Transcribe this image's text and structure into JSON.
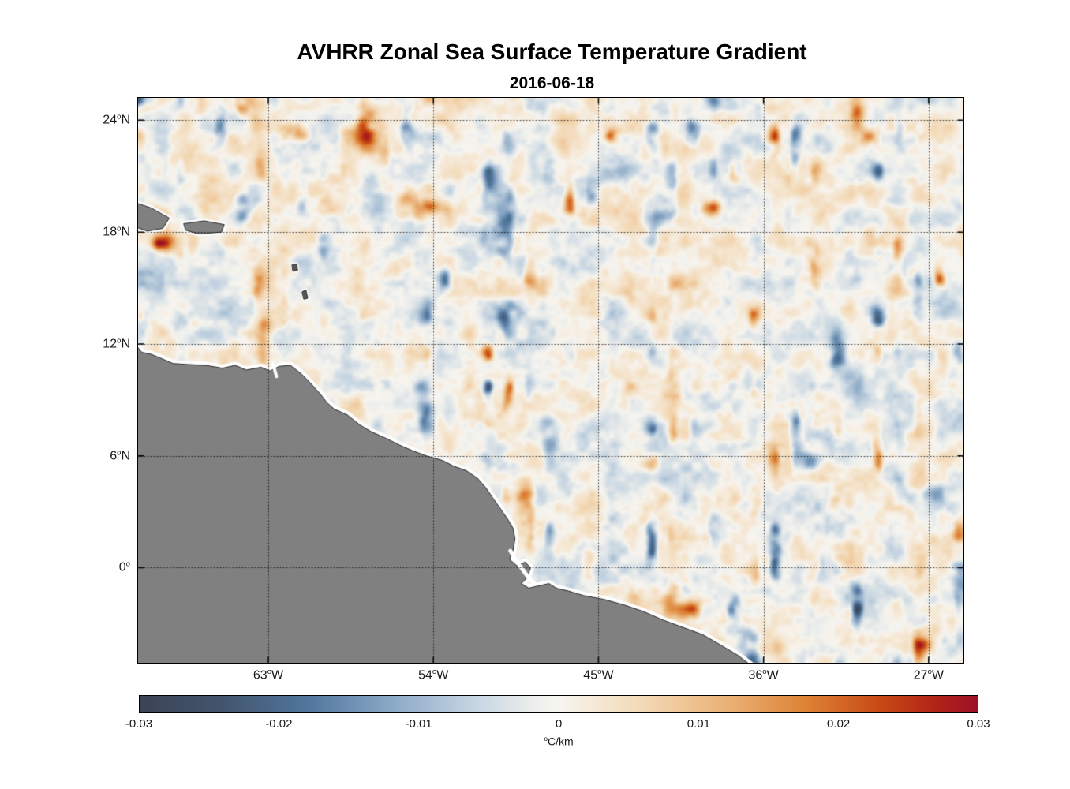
{
  "chart_data": {
    "type": "heatmap",
    "title": "AVHRR Zonal Sea Surface Temperature Gradient",
    "subtitle": "2016-06-18",
    "x_axis": {
      "range": [
        -70.1,
        -25.1
      ],
      "ticks": [
        {
          "value": -63,
          "label": "63°W"
        },
        {
          "value": -54,
          "label": "54°W"
        },
        {
          "value": -45,
          "label": "45°W"
        },
        {
          "value": -36,
          "label": "36°W"
        },
        {
          "value": -27,
          "label": "27°W"
        }
      ]
    },
    "y_axis": {
      "range": [
        -5.1,
        25.2
      ],
      "ticks": [
        {
          "value": 24,
          "label": "24°N"
        },
        {
          "value": 18,
          "label": "18°N"
        },
        {
          "value": 12,
          "label": "12°N"
        },
        {
          "value": 6,
          "label": "6°N"
        },
        {
          "value": 0,
          "label": "0°"
        }
      ]
    },
    "grid": {
      "style": "dotted",
      "color": "rgba(0,0,0,0.75)"
    },
    "value_range": [
      -0.03,
      0.03
    ],
    "colorbar": {
      "orientation": "horizontal",
      "ticks": [
        -0.03,
        -0.02,
        -0.01,
        0,
        0.01,
        0.02,
        0.03
      ],
      "tick_labels": [
        "-0.03",
        "-0.02",
        "-0.01",
        "0",
        "0.01",
        "0.02",
        "0.03"
      ],
      "label": "°C/km",
      "colormap": [
        {
          "t": 0.0,
          "color": "#3b4354"
        },
        {
          "t": 0.1,
          "color": "#42556e"
        },
        {
          "t": 0.2,
          "color": "#50759c"
        },
        {
          "t": 0.3,
          "color": "#8aa8c6"
        },
        {
          "t": 0.4,
          "color": "#c6d5e2"
        },
        {
          "t": 0.47,
          "color": "#eceeec"
        },
        {
          "t": 0.5,
          "color": "#f7f5f0"
        },
        {
          "t": 0.53,
          "color": "#f6ecdd"
        },
        {
          "t": 0.6,
          "color": "#f3d9b6"
        },
        {
          "t": 0.7,
          "color": "#eab277"
        },
        {
          "t": 0.8,
          "color": "#dd7f33"
        },
        {
          "t": 0.88,
          "color": "#c84b15"
        },
        {
          "t": 0.95,
          "color": "#b02418"
        },
        {
          "t": 1.0,
          "color": "#9c1127"
        }
      ]
    },
    "field": {
      "description": "Zonal SST gradient field: pale mottling mostly within ±0.01 °C/km over open ocean, with sparse coherent patches reaching ±0.03 °C/km",
      "seed": 20160618,
      "base_amplitude": 0.0105,
      "blob_amplitude": 0.032,
      "blob_threshold": 0.4
    },
    "land": {
      "color": "#808080",
      "outline": "#262626",
      "coast_halo": "#ffffff",
      "polygons": [
        {
          "name": "south-america",
          "halo": 9,
          "points": [
            [
              -70.3,
              12.05
            ],
            [
              -69.9,
              11.55
            ],
            [
              -69.4,
              11.45
            ],
            [
              -68.9,
              11.25
            ],
            [
              -68.2,
              10.95
            ],
            [
              -67.4,
              10.9
            ],
            [
              -66.4,
              10.85
            ],
            [
              -65.5,
              10.7
            ],
            [
              -64.8,
              10.85
            ],
            [
              -64.2,
              10.6
            ],
            [
              -63.4,
              10.75
            ],
            [
              -62.9,
              10.55
            ],
            [
              -62.4,
              10.8
            ],
            [
              -61.8,
              10.85
            ],
            [
              -61.2,
              10.4
            ],
            [
              -60.7,
              9.9
            ],
            [
              -60.2,
              9.35
            ],
            [
              -59.8,
              8.85
            ],
            [
              -59.4,
              8.5
            ],
            [
              -58.7,
              8.2
            ],
            [
              -58.0,
              7.65
            ],
            [
              -57.4,
              7.3
            ],
            [
              -56.5,
              6.9
            ],
            [
              -55.9,
              6.6
            ],
            [
              -55.2,
              6.3
            ],
            [
              -54.4,
              6.0
            ],
            [
              -53.5,
              5.75
            ],
            [
              -52.9,
              5.45
            ],
            [
              -52.2,
              5.2
            ],
            [
              -51.6,
              4.8
            ],
            [
              -51.15,
              4.3
            ],
            [
              -50.7,
              3.65
            ],
            [
              -50.3,
              3.1
            ],
            [
              -49.95,
              2.6
            ],
            [
              -49.65,
              2.1
            ],
            [
              -49.55,
              1.55
            ],
            [
              -49.65,
              0.95
            ],
            [
              -49.85,
              0.45
            ],
            [
              -49.45,
              0.1
            ],
            [
              -49.0,
              0.3
            ],
            [
              -48.7,
              0.0
            ],
            [
              -48.9,
              -0.55
            ],
            [
              -49.2,
              -0.85
            ],
            [
              -48.8,
              -1.1
            ],
            [
              -48.15,
              -0.95
            ],
            [
              -47.7,
              -0.85
            ],
            [
              -47.3,
              -1.1
            ],
            [
              -46.65,
              -1.25
            ],
            [
              -45.8,
              -1.5
            ],
            [
              -44.7,
              -1.7
            ],
            [
              -43.6,
              -2.0
            ],
            [
              -42.55,
              -2.35
            ],
            [
              -41.5,
              -2.8
            ],
            [
              -40.4,
              -3.2
            ],
            [
              -39.3,
              -3.6
            ],
            [
              -38.25,
              -4.2
            ],
            [
              -37.4,
              -4.7
            ],
            [
              -36.6,
              -5.3
            ],
            [
              -70.3,
              -5.3
            ]
          ]
        },
        {
          "name": "hispaniola-east",
          "halo": 6,
          "points": [
            [
              -70.3,
              19.6
            ],
            [
              -69.4,
              19.3
            ],
            [
              -68.4,
              18.75
            ],
            [
              -68.75,
              18.2
            ],
            [
              -69.6,
              18.05
            ],
            [
              -70.3,
              18.3
            ]
          ]
        },
        {
          "name": "puerto-rico",
          "halo": 6,
          "points": [
            [
              -67.6,
              18.45
            ],
            [
              -66.5,
              18.6
            ],
            [
              -65.4,
              18.4
            ],
            [
              -65.55,
              18.0
            ],
            [
              -66.8,
              17.9
            ],
            [
              -67.5,
              18.1
            ]
          ]
        },
        {
          "name": "lesser-antilles-north",
          "halo": 4,
          "fill": "#555555",
          "points": [
            [
              -61.7,
              16.25
            ],
            [
              -61.45,
              16.3
            ],
            [
              -61.4,
              15.95
            ],
            [
              -61.65,
              15.9
            ]
          ]
        },
        {
          "name": "lesser-antilles-south",
          "halo": 4,
          "fill": "#555555",
          "points": [
            [
              -61.15,
              14.8
            ],
            [
              -60.95,
              14.9
            ],
            [
              -60.85,
              14.45
            ],
            [
              -61.05,
              14.4
            ]
          ]
        }
      ],
      "channels": [
        {
          "name": "amazon-mouth",
          "width": 5,
          "points": [
            [
              -49.8,
              0.9
            ],
            [
              -49.35,
              0.2
            ],
            [
              -48.95,
              -0.35
            ],
            [
              -48.5,
              -0.85
            ]
          ]
        },
        {
          "name": "gulf-of-paria",
          "width": 4,
          "points": [
            [
              -62.75,
              10.95
            ],
            [
              -62.55,
              10.25
            ]
          ]
        }
      ]
    }
  }
}
